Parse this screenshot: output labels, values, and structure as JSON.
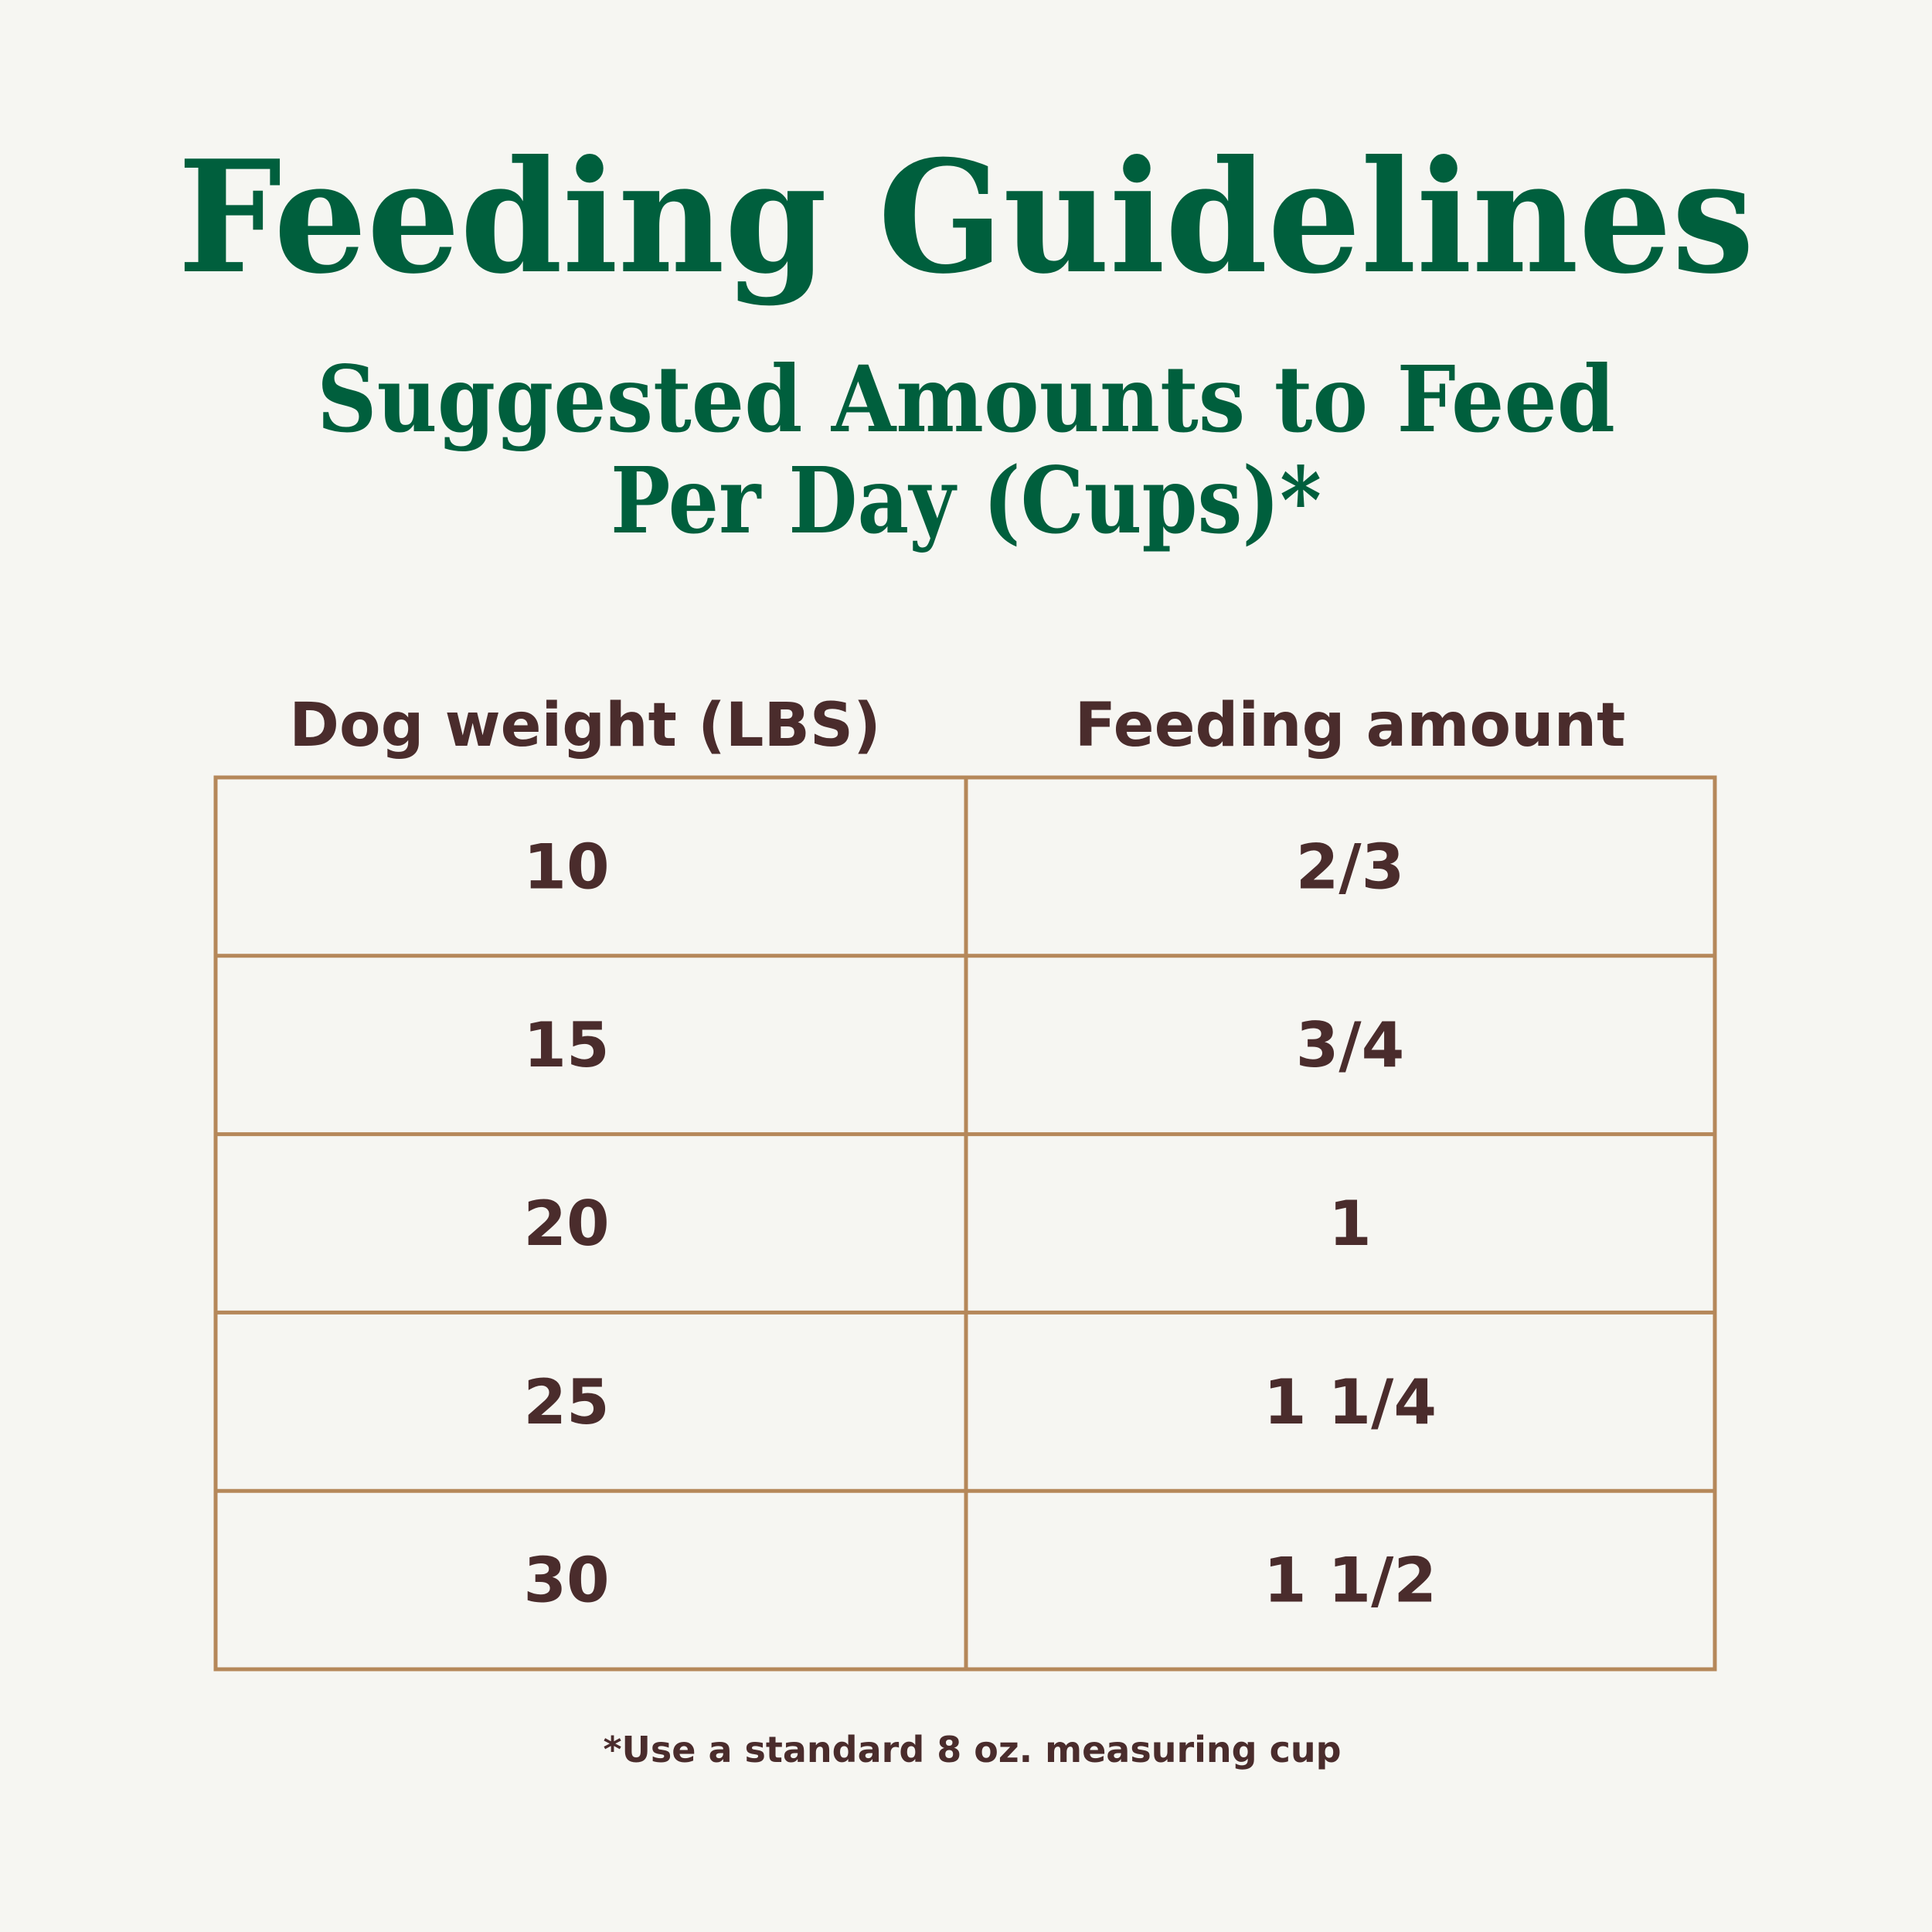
{
  "header": {
    "title": "Feeding Guidelines",
    "subtitle": [
      "Suggested Amounts to Feed",
      "Per Day (Cups)*"
    ]
  },
  "table": {
    "columns": [
      "Dog weight (LBS)",
      "Feeding amount"
    ],
    "rows": [
      [
        10,
        "2/3"
      ],
      [
        15,
        "3/4"
      ],
      [
        20,
        "1"
      ],
      [
        25,
        "1 1/4"
      ],
      [
        30,
        "1 1/2"
      ]
    ]
  },
  "footnote": "*Use a standard 8 oz. measuring cup"
}
